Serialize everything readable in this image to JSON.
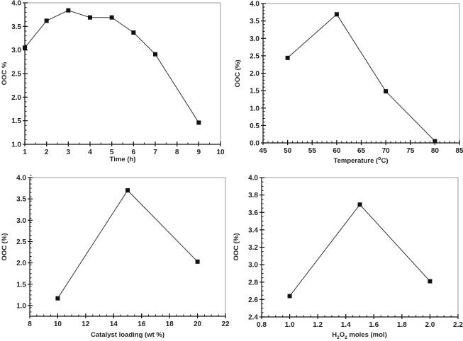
{
  "chart_data": [
    {
      "type": "line",
      "title": "",
      "xlabel": "Time (h)",
      "ylabel": "OOC %",
      "xlim": [
        1,
        10
      ],
      "ylim": [
        1.0,
        4.0
      ],
      "xticks": [
        1,
        2,
        3,
        4,
        5,
        6,
        7,
        8,
        9,
        10
      ],
      "xtick_labels": [
        "1",
        "2",
        "3",
        "4",
        "5",
        "6",
        "7",
        "8",
        "9",
        "10"
      ],
      "yticks": [
        1.0,
        1.5,
        2.0,
        2.5,
        3.0,
        3.5,
        4.0
      ],
      "ytick_labels": [
        "1.0",
        "1.5",
        "2.0",
        "2.5",
        "3.0",
        "3.5",
        "4.0"
      ],
      "x_minor": 0.5,
      "y_minor": 0.1,
      "grid": false,
      "series": [
        {
          "name": "OOC",
          "x": [
            1,
            2,
            3,
            4,
            5,
            6,
            7,
            9
          ],
          "values": [
            3.05,
            3.62,
            3.84,
            3.69,
            3.69,
            3.37,
            2.91,
            1.46
          ],
          "marker": "square",
          "color": "#111111"
        }
      ]
    },
    {
      "type": "line",
      "title": "",
      "xlabel": "Temperature (",
      "xlabel_sup": "o",
      "xlabel_tail": "C)",
      "ylabel": "OOC (%)",
      "xlim": [
        45,
        85
      ],
      "ylim": [
        0.0,
        4.0
      ],
      "xticks": [
        45,
        50,
        55,
        60,
        65,
        70,
        75,
        80,
        85
      ],
      "xtick_labels": [
        "45",
        "50",
        "55",
        "60",
        "65",
        "70",
        "75",
        "80",
        "85"
      ],
      "yticks": [
        0.0,
        0.5,
        1.0,
        1.5,
        2.0,
        2.5,
        3.0,
        3.5,
        4.0
      ],
      "ytick_labels": [
        "0.0",
        "0.5",
        "1.0",
        "1.5",
        "2.0",
        "2.5",
        "3.0",
        "3.5",
        "4.0"
      ],
      "x_minor": 1,
      "y_minor": 0.1,
      "grid": false,
      "series": [
        {
          "name": "OOC",
          "x": [
            50,
            60,
            70,
            80
          ],
          "values": [
            2.44,
            3.69,
            1.48,
            0.05
          ],
          "marker": "square",
          "color": "#111111"
        }
      ]
    },
    {
      "type": "line",
      "title": "",
      "xlabel": "Catalyst loading (wt %)",
      "ylabel": "OOC (%)",
      "xlim": [
        8,
        22
      ],
      "ylim": [
        0.75,
        4.0
      ],
      "xticks": [
        8,
        10,
        12,
        14,
        16,
        18,
        20,
        22
      ],
      "xtick_labels": [
        "8",
        "10",
        "12",
        "14",
        "16",
        "18",
        "20",
        "22"
      ],
      "yticks": [
        1.0,
        1.5,
        2.0,
        2.5,
        3.0,
        3.5,
        4.0
      ],
      "ytick_labels": [
        "1.0",
        "1.5",
        "2.0",
        "2.5",
        "3.0",
        "3.5",
        "4.0"
      ],
      "x_minor": 0.5,
      "y_minor": 0.1,
      "grid": false,
      "series": [
        {
          "name": "OOC",
          "x": [
            10,
            15,
            20
          ],
          "values": [
            1.17,
            3.7,
            2.03
          ],
          "marker": "square",
          "color": "#111111"
        }
      ]
    },
    {
      "type": "line",
      "title": "",
      "xlabel": "H",
      "xlabel_sub1": "2",
      "xlabel_mid": "O",
      "xlabel_sub2": "2",
      "xlabel_tail": " moles (mol)",
      "ylabel": "OOC (%)",
      "xlim": [
        0.8,
        2.2
      ],
      "ylim": [
        2.4,
        4.0
      ],
      "xticks": [
        0.8,
        1.0,
        1.2,
        1.4,
        1.6,
        1.8,
        2.0,
        2.2
      ],
      "xtick_labels": [
        "0.8",
        "1.0",
        "1.2",
        "1.4",
        "1.6",
        "1.8",
        "2.0",
        "2.2"
      ],
      "yticks": [
        2.4,
        2.6,
        2.8,
        3.0,
        3.2,
        3.4,
        3.6,
        3.8,
        4.0
      ],
      "ytick_labels": [
        "2.4",
        "2.6",
        "2.8",
        "3.0",
        "3.2",
        "3.4",
        "3.6",
        "3.8",
        "4.0"
      ],
      "x_minor": 0.05,
      "y_minor": 0.05,
      "grid": false,
      "series": [
        {
          "name": "OOC",
          "x": [
            1.0,
            1.5,
            2.0
          ],
          "values": [
            2.64,
            3.69,
            2.81
          ],
          "marker": "square",
          "color": "#111111"
        }
      ]
    }
  ]
}
